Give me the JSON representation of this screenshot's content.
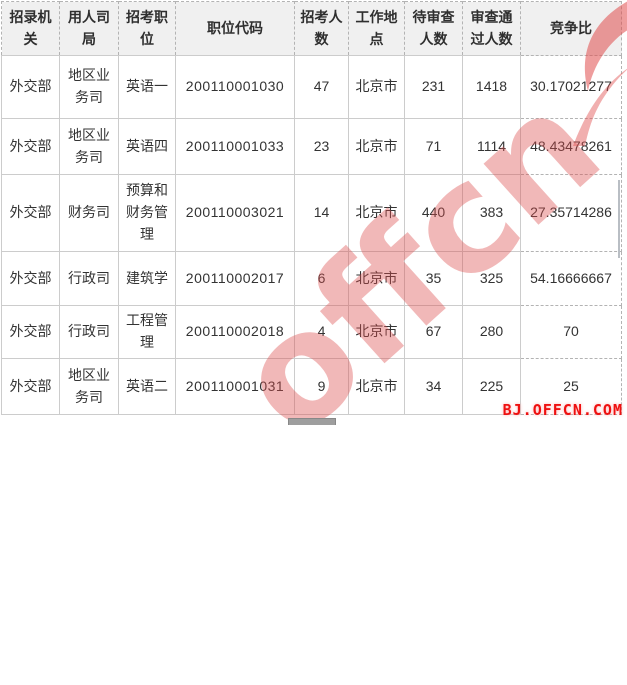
{
  "table": {
    "columns": [
      {
        "key": "agency",
        "label": "招录机关"
      },
      {
        "key": "bureau",
        "label": "用人司局"
      },
      {
        "key": "position",
        "label": "招考职位"
      },
      {
        "key": "code",
        "label": "职位代码"
      },
      {
        "key": "recruits",
        "label": "招考人数"
      },
      {
        "key": "location",
        "label": "工作地点"
      },
      {
        "key": "pending",
        "label": "待审查人数"
      },
      {
        "key": "passed",
        "label": "审查通过人数"
      },
      {
        "key": "ratio",
        "label": "竞争比"
      }
    ],
    "rows": [
      [
        "外交部",
        "地区业务司",
        "英语一",
        "200110001030",
        "47",
        "北京市",
        "231",
        "1418",
        "30.17021277"
      ],
      [
        "外交部",
        "地区业务司",
        "英语四",
        "200110001033",
        "23",
        "北京市",
        "71",
        "1114",
        "48.43478261"
      ],
      [
        "外交部",
        "财务司",
        "预算和财务管理",
        "200110003021",
        "14",
        "北京市",
        "440",
        "383",
        "27.35714286"
      ],
      [
        "外交部",
        "行政司",
        "建筑学",
        "200110002017",
        "6",
        "北京市",
        "35",
        "325",
        "54.16666667"
      ],
      [
        "外交部",
        "行政司",
        "工程管理",
        "200110002018",
        "4",
        "北京市",
        "67",
        "280",
        "70"
      ],
      [
        "外交部",
        "地区业务司",
        "英语二",
        "200110001031",
        "9",
        "北京市",
        "34",
        "225",
        "25"
      ]
    ]
  },
  "watermark": {
    "brand": "offcn",
    "site_label": "BJ.OFFCN.COM",
    "accent_color": "#ee1010",
    "brand_tint": "rgba(219,78,78,0.40)"
  }
}
